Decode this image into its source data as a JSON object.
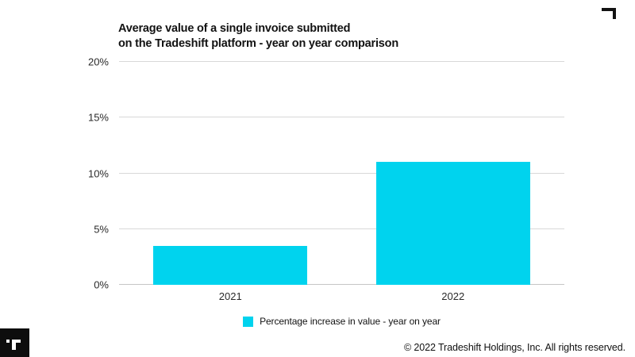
{
  "slide": {
    "title": "Average value of a single invoice submitted\non the Tradeshift platform - year on year comparison"
  },
  "chart_data": {
    "type": "bar",
    "title": "Average value of a single invoice submitted on the Tradeshift platform - year on year comparison",
    "categories": [
      "2021",
      "2022"
    ],
    "values": [
      3.5,
      11
    ],
    "series_name": "Percentage increase in value - year on year",
    "xlabel": "",
    "ylabel": "",
    "ylim": [
      0,
      20
    ],
    "yticks": [
      0,
      5,
      10,
      15,
      20
    ],
    "ytick_labels": [
      "0%",
      "5%",
      "10%",
      "15%",
      "20%"
    ],
    "grid": true,
    "legend_position": "bottom",
    "bar_color": "#00d3ee"
  },
  "legend": {
    "label": "Percentage increase in value - year on year",
    "swatch_color": "#00d3ee"
  },
  "footer": {
    "logo": "tradeshift-t-logo",
    "copyright": "© 2022 Tradeshift Holdings, Inc. All rights reserved."
  },
  "colors": {
    "accent_cyan": "#00d3ee",
    "gridline": "#d8d8d8",
    "text_dark": "#121212",
    "logo_background": "#0d0d0d"
  }
}
